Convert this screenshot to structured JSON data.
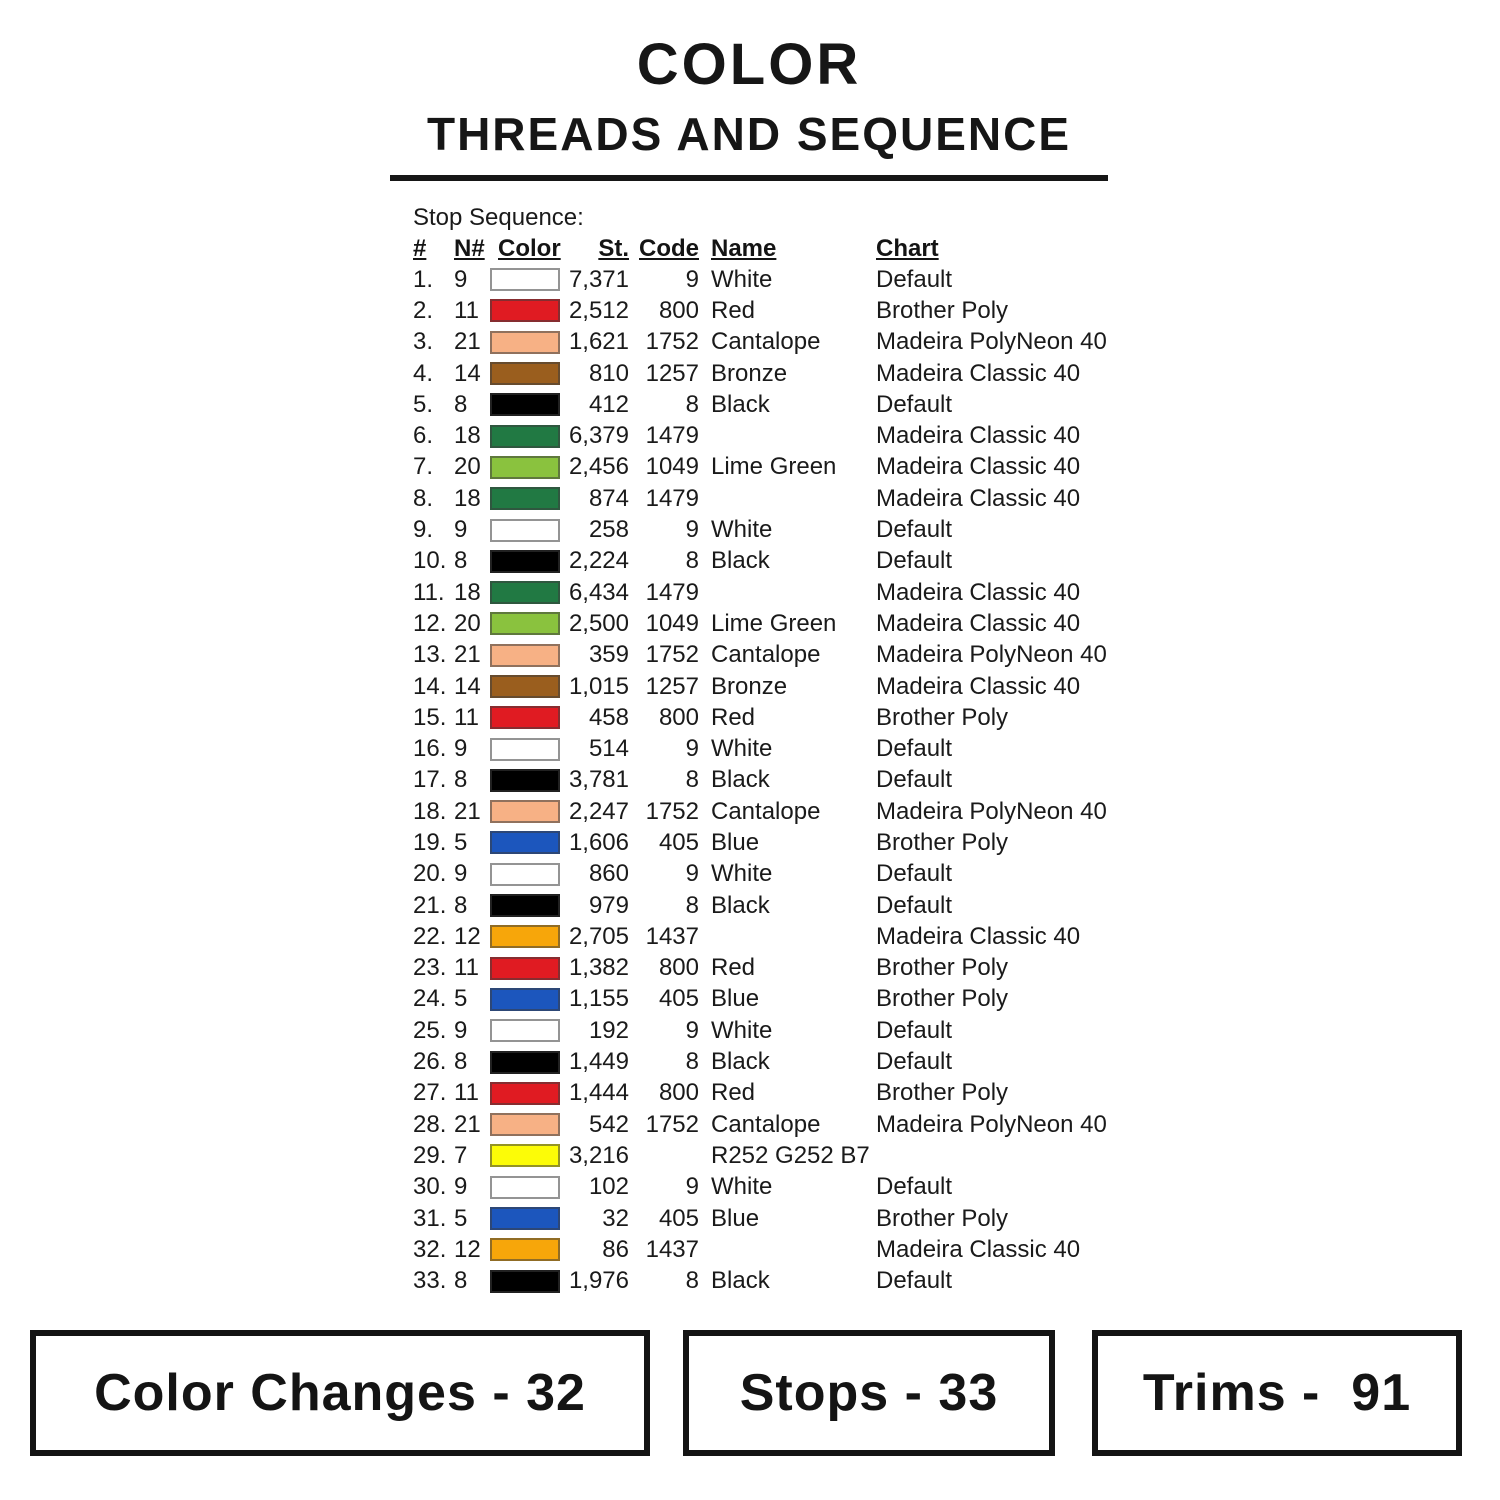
{
  "header": {
    "title": "COLOR",
    "subtitle": "THREADS AND SEQUENCE"
  },
  "table": {
    "section_label": "Stop Sequence:",
    "headers": [
      "#",
      "N#",
      "Color",
      "St.",
      "Code",
      "Name",
      "Chart"
    ],
    "rows": [
      {
        "num": "1.",
        "n": "9",
        "color_hex": "#FFFFFF",
        "st": "7,371",
        "code": "9",
        "name": "White",
        "chart": "Default"
      },
      {
        "num": "2.",
        "n": "11",
        "color_hex": "#E01B22",
        "st": "2,512",
        "code": "800",
        "name": "Red",
        "chart": "Brother Poly"
      },
      {
        "num": "3.",
        "n": "21",
        "color_hex": "#F7B185",
        "st": "1,621",
        "code": "1752",
        "name": "Cantalope",
        "chart": "Madeira PolyNeon 40"
      },
      {
        "num": "4.",
        "n": "14",
        "color_hex": "#9A5E1E",
        "st": "810",
        "code": "1257",
        "name": "Bronze",
        "chart": "Madeira Classic 40"
      },
      {
        "num": "5.",
        "n": "8",
        "color_hex": "#000000",
        "st": "412",
        "code": "8",
        "name": "Black",
        "chart": "Default"
      },
      {
        "num": "6.",
        "n": "18",
        "color_hex": "#217943",
        "st": "6,379",
        "code": "1479",
        "name": "",
        "chart": "Madeira Classic 40"
      },
      {
        "num": "7.",
        "n": "20",
        "color_hex": "#8AC23E",
        "st": "2,456",
        "code": "1049",
        "name": "Lime Green",
        "chart": "Madeira Classic 40"
      },
      {
        "num": "8.",
        "n": "18",
        "color_hex": "#217943",
        "st": "874",
        "code": "1479",
        "name": "",
        "chart": "Madeira Classic 40"
      },
      {
        "num": "9.",
        "n": "9",
        "color_hex": "#FFFFFF",
        "st": "258",
        "code": "9",
        "name": "White",
        "chart": "Default"
      },
      {
        "num": "10.",
        "n": "8",
        "color_hex": "#000000",
        "st": "2,224",
        "code": "8",
        "name": "Black",
        "chart": "Default"
      },
      {
        "num": "11.",
        "n": "18",
        "color_hex": "#217943",
        "st": "6,434",
        "code": "1479",
        "name": "",
        "chart": "Madeira Classic 40"
      },
      {
        "num": "12.",
        "n": "20",
        "color_hex": "#8AC23E",
        "st": "2,500",
        "code": "1049",
        "name": "Lime Green",
        "chart": "Madeira Classic 40"
      },
      {
        "num": "13.",
        "n": "21",
        "color_hex": "#F7B185",
        "st": "359",
        "code": "1752",
        "name": "Cantalope",
        "chart": "Madeira PolyNeon 40"
      },
      {
        "num": "14.",
        "n": "14",
        "color_hex": "#9A5E1E",
        "st": "1,015",
        "code": "1257",
        "name": "Bronze",
        "chart": "Madeira Classic 40"
      },
      {
        "num": "15.",
        "n": "11",
        "color_hex": "#E01B22",
        "st": "458",
        "code": "800",
        "name": "Red",
        "chart": "Brother Poly"
      },
      {
        "num": "16.",
        "n": "9",
        "color_hex": "#FFFFFF",
        "st": "514",
        "code": "9",
        "name": "White",
        "chart": "Default"
      },
      {
        "num": "17.",
        "n": "8",
        "color_hex": "#000000",
        "st": "3,781",
        "code": "8",
        "name": "Black",
        "chart": "Default"
      },
      {
        "num": "18.",
        "n": "21",
        "color_hex": "#F7B185",
        "st": "2,247",
        "code": "1752",
        "name": "Cantalope",
        "chart": "Madeira PolyNeon 40"
      },
      {
        "num": "19.",
        "n": "5",
        "color_hex": "#1C56BD",
        "st": "1,606",
        "code": "405",
        "name": "Blue",
        "chart": "Brother Poly"
      },
      {
        "num": "20.",
        "n": "9",
        "color_hex": "#FFFFFF",
        "st": "860",
        "code": "9",
        "name": "White",
        "chart": "Default"
      },
      {
        "num": "21.",
        "n": "8",
        "color_hex": "#000000",
        "st": "979",
        "code": "8",
        "name": "Black",
        "chart": "Default"
      },
      {
        "num": "22.",
        "n": "12",
        "color_hex": "#F7A60A",
        "st": "2,705",
        "code": "1437",
        "name": "",
        "chart": "Madeira Classic 40"
      },
      {
        "num": "23.",
        "n": "11",
        "color_hex": "#E01B22",
        "st": "1,382",
        "code": "800",
        "name": "Red",
        "chart": "Brother Poly"
      },
      {
        "num": "24.",
        "n": "5",
        "color_hex": "#1C56BD",
        "st": "1,155",
        "code": "405",
        "name": "Blue",
        "chart": "Brother Poly"
      },
      {
        "num": "25.",
        "n": "9",
        "color_hex": "#FFFFFF",
        "st": "192",
        "code": "9",
        "name": "White",
        "chart": "Default"
      },
      {
        "num": "26.",
        "n": "8",
        "color_hex": "#000000",
        "st": "1,449",
        "code": "8",
        "name": "Black",
        "chart": "Default"
      },
      {
        "num": "27.",
        "n": "11",
        "color_hex": "#E01B22",
        "st": "1,444",
        "code": "800",
        "name": "Red",
        "chart": "Brother Poly"
      },
      {
        "num": "28.",
        "n": "21",
        "color_hex": "#F7B185",
        "st": "542",
        "code": "1752",
        "name": "Cantalope",
        "chart": "Madeira PolyNeon 40"
      },
      {
        "num": "29.",
        "n": "7",
        "color_hex": "#FCFC07",
        "st": "3,216",
        "code": "",
        "name": "R252 G252 B7",
        "chart": ""
      },
      {
        "num": "30.",
        "n": "9",
        "color_hex": "#FFFFFF",
        "st": "102",
        "code": "9",
        "name": "White",
        "chart": "Default"
      },
      {
        "num": "31.",
        "n": "5",
        "color_hex": "#1C56BD",
        "st": "32",
        "code": "405",
        "name": "Blue",
        "chart": "Brother Poly"
      },
      {
        "num": "32.",
        "n": "12",
        "color_hex": "#F7A60A",
        "st": "86",
        "code": "1437",
        "name": "",
        "chart": "Madeira Classic 40"
      },
      {
        "num": "33.",
        "n": "8",
        "color_hex": "#000000",
        "st": "1,976",
        "code": "8",
        "name": "Black",
        "chart": "Default"
      }
    ]
  },
  "footer": {
    "color_changes_label": "Color Changes - 32",
    "stops_label": "Stops - 33",
    "trims_label": "Trims -  91"
  }
}
